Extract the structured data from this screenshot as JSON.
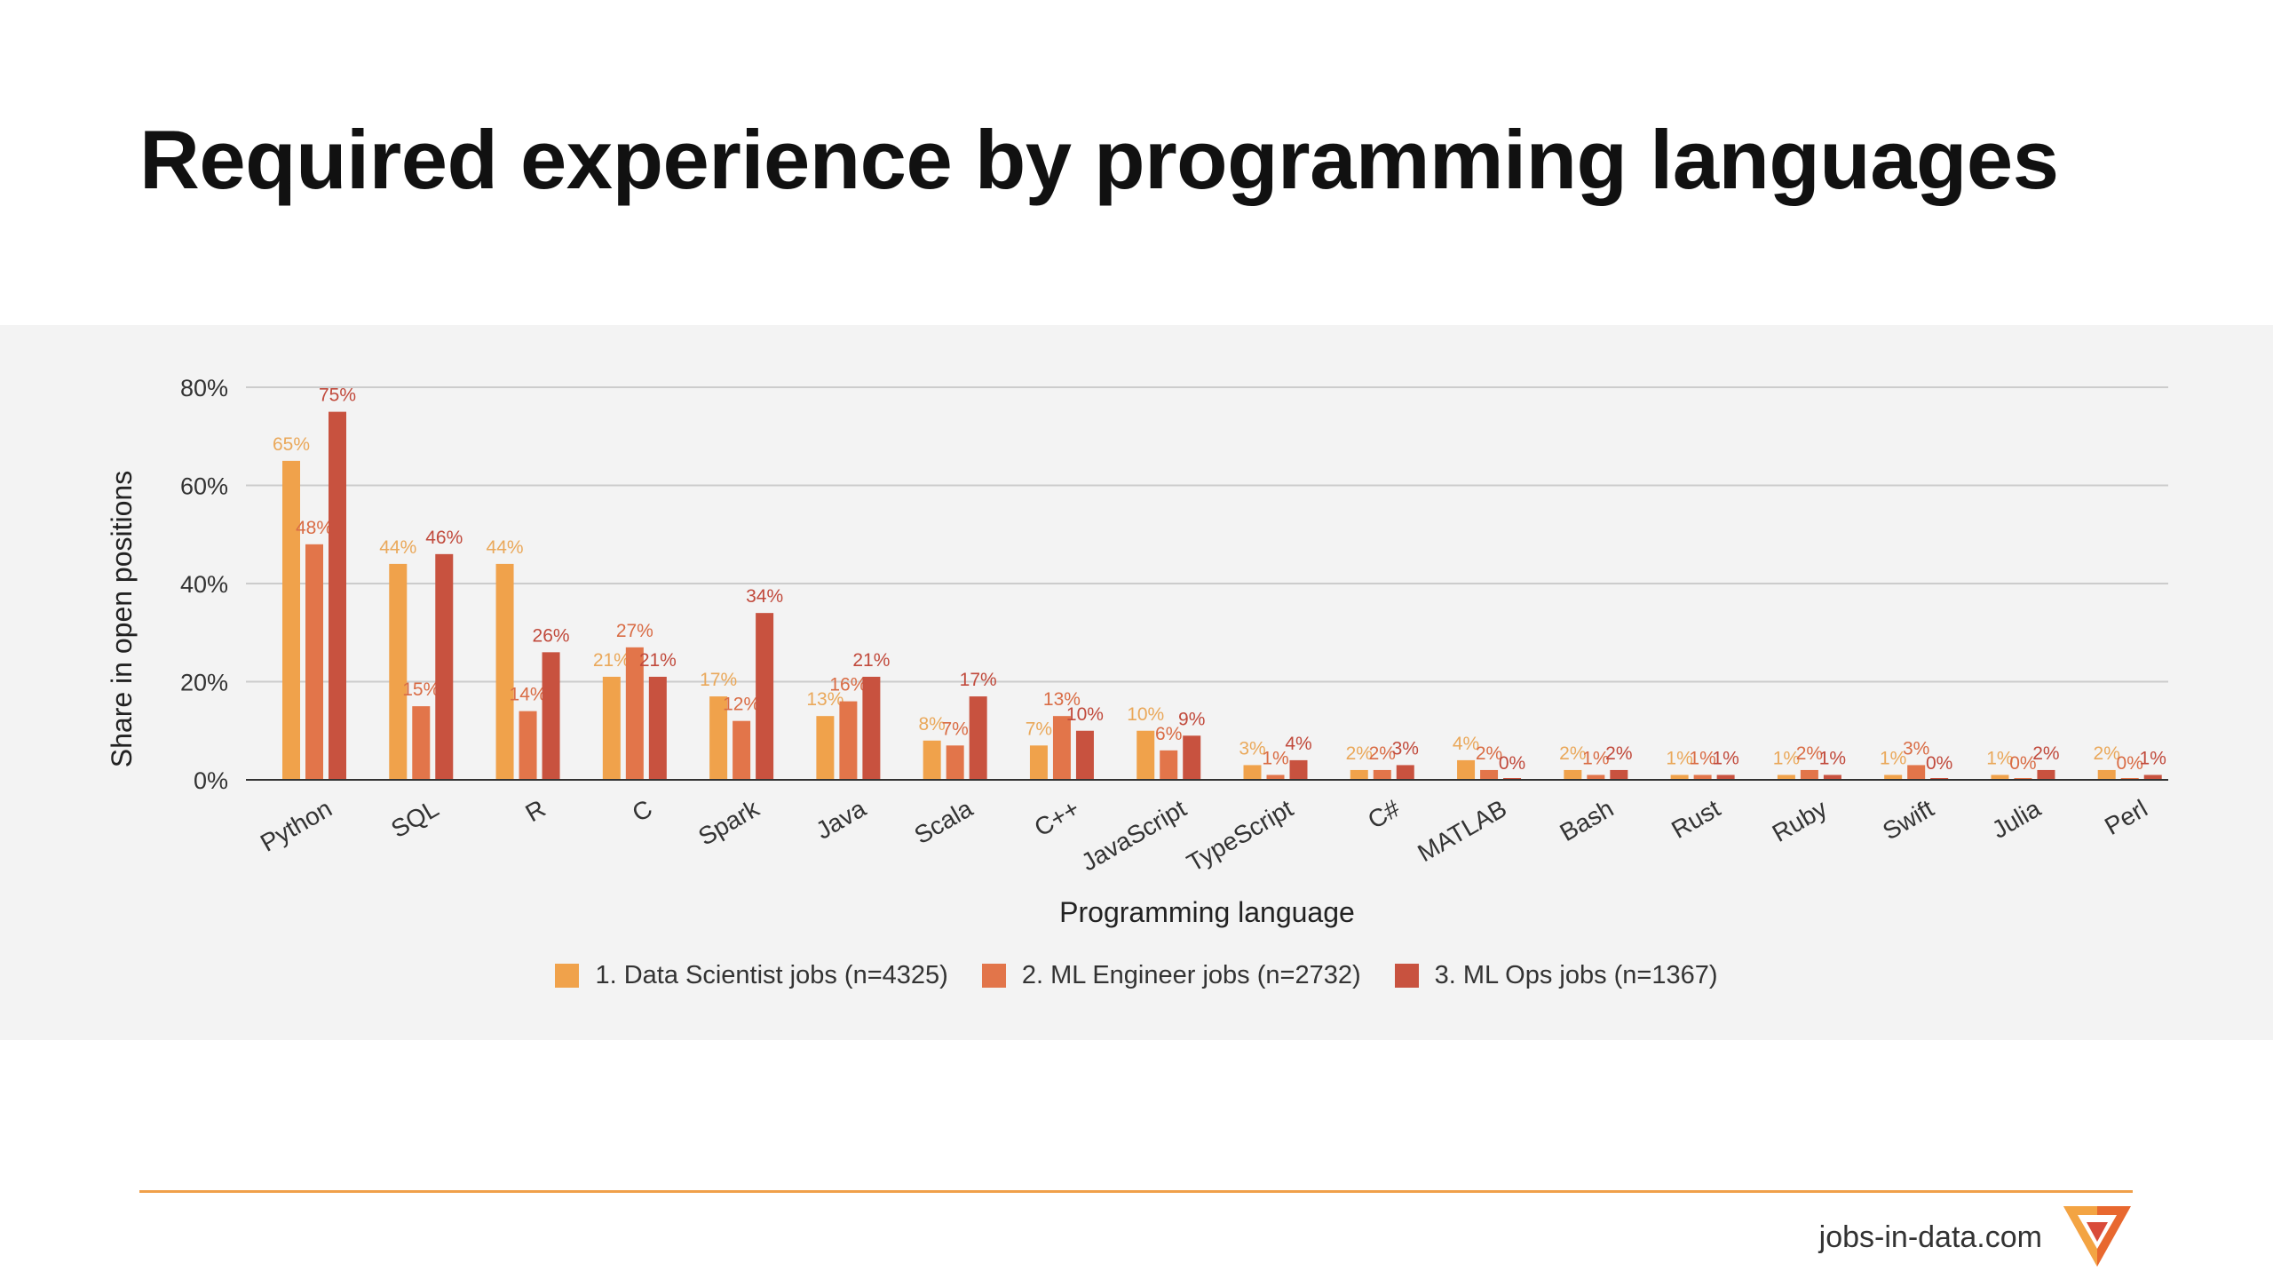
{
  "page": {
    "title": "Required experience by programming languages",
    "footer_site": "jobs-in-data.com",
    "logo_icon": "jobs-in-data-logo-icon"
  },
  "colors": {
    "series": [
      "#f0a24b",
      "#e2754a",
      "#c8523f"
    ],
    "label_colors": [
      "#eaa85a",
      "#d96c45",
      "#c14a3c"
    ],
    "grid": "#cccccc",
    "axis": "#333333",
    "panel": "#f3f3f3",
    "rule": "#f0a04a"
  },
  "chart_data": {
    "type": "bar",
    "title": "",
    "xlabel": "Programming language",
    "ylabel": "Share in open positions",
    "ylim": [
      0,
      80
    ],
    "yticks": [
      0,
      20,
      40,
      60,
      80
    ],
    "ytick_labels": [
      "0%",
      "20%",
      "40%",
      "60%",
      "80%"
    ],
    "grid": true,
    "legend_position": "bottom",
    "categories": [
      "Python",
      "SQL",
      "R",
      "C",
      "Spark",
      "Java",
      "Scala",
      "C++",
      "JavaScript",
      "TypeScript",
      "C#",
      "MATLAB",
      "Bash",
      "Rust",
      "Ruby",
      "Swift",
      "Julia",
      "Perl"
    ],
    "series": [
      {
        "name": "1. Data Scientist jobs (n=4325)",
        "values": [
          65,
          44,
          44,
          21,
          17,
          13,
          8,
          7,
          10,
          3,
          2,
          4,
          2,
          1,
          1,
          1,
          1,
          2
        ],
        "labels": [
          "65%",
          "44%",
          "44%",
          "21%",
          "17%",
          "13%",
          "8%",
          "7%",
          "10%",
          "3%",
          "2%",
          "4%",
          "2%",
          "1%",
          "1%",
          "1%",
          "1%",
          "2%"
        ]
      },
      {
        "name": "2. ML Engineer jobs (n=2732)",
        "values": [
          48,
          15,
          14,
          27,
          12,
          16,
          7,
          13,
          6,
          1,
          2,
          2,
          1,
          1,
          2,
          3,
          0,
          0
        ],
        "labels": [
          "48%",
          "15%",
          "14%",
          "27%",
          "12%",
          "16%",
          "7%",
          "13%",
          "6%",
          "1%",
          "2%",
          "2%",
          "1%",
          "1%",
          "2%",
          "3%",
          "0%",
          "0%"
        ]
      },
      {
        "name": "3. ML Ops jobs (n=1367)",
        "values": [
          75,
          46,
          26,
          21,
          34,
          21,
          17,
          10,
          9,
          4,
          3,
          0,
          2,
          1,
          1,
          0,
          2,
          1
        ],
        "labels": [
          "75%",
          "46%",
          "26%",
          "21%",
          "34%",
          "21%",
          "17%",
          "10%",
          "9%",
          "4%",
          "3%",
          "0%",
          "2%",
          "1%",
          "1%",
          "0%",
          "2%",
          "1%"
        ]
      }
    ]
  }
}
